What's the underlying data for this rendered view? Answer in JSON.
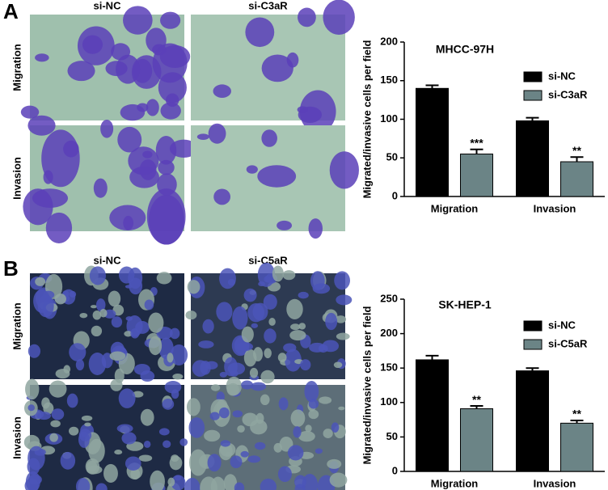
{
  "panels": [
    {
      "label": "A",
      "columns": [
        "si-NC",
        "si-C3aR"
      ],
      "rows": [
        "Migration",
        "Invasion"
      ]
    },
    {
      "label": "B",
      "columns": [
        "si-NC",
        "si-C5aR"
      ],
      "rows": [
        "Migration",
        "Invasion"
      ]
    }
  ],
  "chart_data": [
    {
      "type": "bar",
      "title": "MHCC-97H",
      "ylabel": "Migrated/invasive cells per field",
      "categories": [
        "Migration",
        "Invasion"
      ],
      "series": [
        {
          "name": "si-NC",
          "color": "#000000",
          "values": [
            140,
            98
          ],
          "errors": [
            4,
            4
          ]
        },
        {
          "name": "si-C3aR",
          "color": "#6b8486",
          "values": [
            55,
            45
          ],
          "errors": [
            6,
            6
          ],
          "significance": [
            "***",
            "**"
          ]
        }
      ],
      "ylim": [
        0,
        200
      ],
      "yticks": [
        0,
        50,
        100,
        150,
        200
      ],
      "legend": "upper-right"
    },
    {
      "type": "bar",
      "title": "SK-HEP-1",
      "ylabel": "Migrated/invasive cells per field",
      "categories": [
        "Migration",
        "Invasion"
      ],
      "series": [
        {
          "name": "si-NC",
          "color": "#000000",
          "values": [
            162,
            146
          ],
          "errors": [
            6,
            4
          ]
        },
        {
          "name": "si-C5aR",
          "color": "#6b8486",
          "values": [
            91,
            70
          ],
          "errors": [
            4,
            4
          ],
          "significance": [
            "**",
            "**"
          ]
        }
      ],
      "ylim": [
        0,
        250
      ],
      "yticks": [
        0,
        50,
        100,
        150,
        200,
        250
      ],
      "legend": "upper-right"
    }
  ]
}
